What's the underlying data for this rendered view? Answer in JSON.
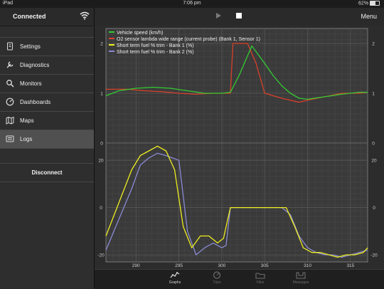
{
  "status_bar": {
    "device": "iPad",
    "time": "7:06 pm",
    "battery": "62%",
    "battery_level": 0.62
  },
  "sidebar": {
    "title": "Connected",
    "items": [
      {
        "label": "Settings",
        "icon": "settings-icon"
      },
      {
        "label": "Diagnostics",
        "icon": "diagnostics-icon"
      },
      {
        "label": "Monitors",
        "icon": "search-icon"
      },
      {
        "label": "Dashboards",
        "icon": "dashboard-icon"
      },
      {
        "label": "Maps",
        "icon": "map-icon"
      },
      {
        "label": "Logs",
        "icon": "logs-icon",
        "active": true
      }
    ],
    "disconnect_label": "Disconnect"
  },
  "toolbar": {
    "menu_label": "Menu"
  },
  "tabs": [
    {
      "label": "Graphs",
      "icon": "graph-icon",
      "active": true
    },
    {
      "label": "Trips",
      "icon": "trips-icon"
    },
    {
      "label": "Files",
      "icon": "files-icon"
    },
    {
      "label": "Messages",
      "icon": "messages-icon"
    }
  ],
  "chart_data": {
    "type": "line",
    "legend": [
      {
        "name": "Vehicle speed (km/h)",
        "color": "#33cc33"
      },
      {
        "name": "O2 sensor lambda wide range (current probe)  (Bank 1, Sensor 1)",
        "color": "#d9402a"
      },
      {
        "name": "Short term fuel % trim - Bank 1 (%)",
        "color": "#eeee22"
      },
      {
        "name": "Short term fuel % trim - Bank 2 (%)",
        "color": "#8a8ad6"
      }
    ],
    "x_ticks": [
      "290",
      "295",
      "300",
      "305",
      "310",
      "315"
    ],
    "xlim": [
      286.5,
      317
    ],
    "top": {
      "ylim": [
        0,
        2.3
      ],
      "y_ticks": [
        "0",
        "1",
        "2"
      ],
      "series": [
        {
          "name": "O2 sensor lambda wide range (current probe)  (Bank 1, Sensor 1)",
          "color": "#d9402a",
          "x": [
            286.5,
            289,
            291,
            293,
            295,
            297,
            299,
            301,
            301.3,
            303,
            304,
            305,
            307,
            309,
            310,
            312,
            314,
            316,
            317
          ],
          "y": [
            1.08,
            1.08,
            1.05,
            1.03,
            1.0,
            0.98,
            1.0,
            1.0,
            2.0,
            2.0,
            1.6,
            1.0,
            0.9,
            0.82,
            0.86,
            0.93,
            1.0,
            1.0,
            1.02
          ]
        },
        {
          "name": "Vehicle speed (km/h)",
          "color": "#33cc33",
          "x": [
            286.5,
            288,
            290,
            292,
            294,
            296,
            298,
            300,
            301,
            302,
            303.5,
            305,
            306,
            307,
            308,
            309,
            310,
            312,
            314,
            316,
            317
          ],
          "y": [
            0.95,
            1.05,
            1.1,
            1.12,
            1.1,
            1.05,
            1.0,
            1.0,
            1.02,
            1.35,
            1.95,
            1.6,
            1.35,
            1.15,
            1.0,
            0.9,
            0.88,
            0.93,
            0.98,
            1.02,
            1.02
          ]
        }
      ]
    },
    "bottom": {
      "ylim": [
        -23,
        27
      ],
      "y_ticks": [
        "-20",
        "0",
        "20"
      ],
      "series": [
        {
          "name": "Short term fuel % trim - Bank 2 (%)",
          "color": "#8a8ad6",
          "x": [
            286.5,
            288,
            289.5,
            290.5,
            291.5,
            292.5,
            293.5,
            295,
            296,
            297,
            298,
            299,
            300,
            300.5,
            301,
            302,
            303,
            304,
            305,
            306,
            307,
            308,
            309,
            310,
            311,
            312,
            313,
            314,
            315,
            316,
            317
          ],
          "y": [
            -18,
            -5,
            8,
            18,
            21,
            23,
            22,
            20,
            -10,
            -20,
            -17,
            -15,
            -17,
            -16,
            0,
            0,
            0,
            0,
            0,
            0,
            0,
            -3,
            -12,
            -17,
            -19,
            -20,
            -20,
            -21,
            -20,
            -19,
            -18
          ]
        },
        {
          "name": "Short term fuel % trim - Bank 1 (%)",
          "color": "#eeee22",
          "x": [
            286.5,
            288,
            289.5,
            290.5,
            291.5,
            292.5,
            293.5,
            294.5,
            295.5,
            296.5,
            297.5,
            298.5,
            299.5,
            300.2,
            301,
            302,
            303,
            304,
            305,
            306,
            307.5,
            308.5,
            309.5,
            310.5,
            311.5,
            312.5,
            313.5,
            314.5,
            315.5,
            316.5,
            317
          ],
          "y": [
            -12,
            2,
            16,
            22,
            24,
            26,
            24,
            16,
            -8,
            -17,
            -12,
            -12,
            -15,
            -13,
            0,
            0,
            0,
            0,
            0,
            0,
            0,
            -8,
            -17,
            -19,
            -19,
            -20,
            -21,
            -20,
            -20,
            -19,
            -17
          ]
        }
      ]
    }
  }
}
